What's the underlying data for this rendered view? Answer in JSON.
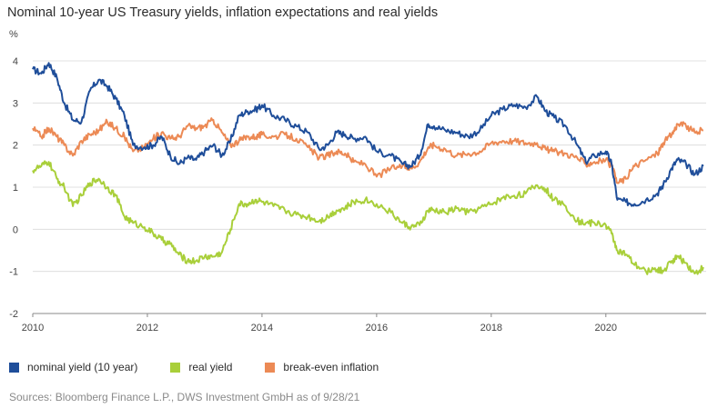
{
  "title": "Nominal 10-year US Treasury yields, inflation expectations and real yields",
  "unit_label": "%",
  "source": "Sources: Bloomberg Finance L.P., DWS Investment GmbH as of 9/28/21",
  "colors": {
    "nominal": "#1f4e9a",
    "real": "#a9cf3a",
    "breakeven": "#ec8a55",
    "grid": "#d9d9d9",
    "axis": "#888888"
  },
  "chart_data": {
    "type": "line",
    "title": "Nominal 10-year US Treasury yields, inflation expectations and real yields",
    "xlabel": "",
    "ylabel": "%",
    "xlim": [
      2010.0,
      2021.75
    ],
    "ylim": [
      -2,
      4
    ],
    "x_ticks": [
      2010,
      2012,
      2014,
      2016,
      2018,
      2020
    ],
    "y_ticks": [
      -2,
      -1,
      0,
      1,
      2,
      3,
      4
    ],
    "grid": "horizontal",
    "legend_position": "bottom",
    "series": [
      {
        "name": "nominal yield (10 year)",
        "color": "#1f4e9a",
        "points": [
          [
            2010.0,
            3.8
          ],
          [
            2010.15,
            3.7
          ],
          [
            2010.28,
            3.95
          ],
          [
            2010.42,
            3.6
          ],
          [
            2010.55,
            3.0
          ],
          [
            2010.7,
            2.6
          ],
          [
            2010.85,
            2.55
          ],
          [
            2011.0,
            3.3
          ],
          [
            2011.15,
            3.55
          ],
          [
            2011.3,
            3.4
          ],
          [
            2011.45,
            3.1
          ],
          [
            2011.6,
            2.7
          ],
          [
            2011.75,
            2.0
          ],
          [
            2011.95,
            1.95
          ],
          [
            2012.1,
            2.0
          ],
          [
            2012.25,
            2.2
          ],
          [
            2012.4,
            1.75
          ],
          [
            2012.55,
            1.55
          ],
          [
            2012.7,
            1.7
          ],
          [
            2012.85,
            1.65
          ],
          [
            2013.0,
            1.85
          ],
          [
            2013.15,
            2.0
          ],
          [
            2013.3,
            1.75
          ],
          [
            2013.45,
            2.1
          ],
          [
            2013.6,
            2.7
          ],
          [
            2013.75,
            2.8
          ],
          [
            2013.9,
            2.85
          ],
          [
            2014.0,
            2.95
          ],
          [
            2014.2,
            2.7
          ],
          [
            2014.4,
            2.6
          ],
          [
            2014.6,
            2.45
          ],
          [
            2014.8,
            2.3
          ],
          [
            2015.0,
            1.9
          ],
          [
            2015.15,
            2.0
          ],
          [
            2015.3,
            2.3
          ],
          [
            2015.45,
            2.25
          ],
          [
            2015.6,
            2.15
          ],
          [
            2015.8,
            2.2
          ],
          [
            2016.0,
            1.85
          ],
          [
            2016.25,
            1.75
          ],
          [
            2016.45,
            1.55
          ],
          [
            2016.6,
            1.5
          ],
          [
            2016.75,
            1.75
          ],
          [
            2016.9,
            2.5
          ],
          [
            2017.0,
            2.45
          ],
          [
            2017.2,
            2.35
          ],
          [
            2017.4,
            2.3
          ],
          [
            2017.6,
            2.2
          ],
          [
            2017.8,
            2.35
          ],
          [
            2018.0,
            2.7
          ],
          [
            2018.2,
            2.85
          ],
          [
            2018.4,
            2.95
          ],
          [
            2018.6,
            2.9
          ],
          [
            2018.8,
            3.15
          ],
          [
            2018.95,
            2.8
          ],
          [
            2019.1,
            2.65
          ],
          [
            2019.3,
            2.45
          ],
          [
            2019.5,
            2.0
          ],
          [
            2019.65,
            1.6
          ],
          [
            2019.8,
            1.75
          ],
          [
            2020.0,
            1.85
          ],
          [
            2020.1,
            1.55
          ],
          [
            2020.2,
            0.7
          ],
          [
            2020.35,
            0.65
          ],
          [
            2020.5,
            0.6
          ],
          [
            2020.7,
            0.7
          ],
          [
            2020.9,
            0.85
          ],
          [
            2021.0,
            1.05
          ],
          [
            2021.15,
            1.45
          ],
          [
            2021.25,
            1.65
          ],
          [
            2021.4,
            1.55
          ],
          [
            2021.55,
            1.3
          ],
          [
            2021.7,
            1.5
          ]
        ]
      },
      {
        "name": "real yield",
        "color": "#a9cf3a",
        "points": [
          [
            2010.0,
            1.4
          ],
          [
            2010.15,
            1.5
          ],
          [
            2010.28,
            1.6
          ],
          [
            2010.42,
            1.2
          ],
          [
            2010.55,
            1.0
          ],
          [
            2010.7,
            0.55
          ],
          [
            2010.85,
            0.8
          ],
          [
            2011.0,
            1.1
          ],
          [
            2011.15,
            1.2
          ],
          [
            2011.3,
            1.0
          ],
          [
            2011.45,
            0.8
          ],
          [
            2011.6,
            0.3
          ],
          [
            2011.75,
            0.15
          ],
          [
            2011.95,
            0.05
          ],
          [
            2012.1,
            -0.1
          ],
          [
            2012.25,
            -0.25
          ],
          [
            2012.4,
            -0.35
          ],
          [
            2012.55,
            -0.6
          ],
          [
            2012.7,
            -0.75
          ],
          [
            2012.85,
            -0.75
          ],
          [
            2013.0,
            -0.65
          ],
          [
            2013.15,
            -0.65
          ],
          [
            2013.3,
            -0.55
          ],
          [
            2013.45,
            0.0
          ],
          [
            2013.6,
            0.6
          ],
          [
            2013.75,
            0.6
          ],
          [
            2013.9,
            0.7
          ],
          [
            2014.0,
            0.65
          ],
          [
            2014.2,
            0.55
          ],
          [
            2014.4,
            0.45
          ],
          [
            2014.6,
            0.35
          ],
          [
            2014.8,
            0.3
          ],
          [
            2015.0,
            0.2
          ],
          [
            2015.15,
            0.3
          ],
          [
            2015.3,
            0.45
          ],
          [
            2015.45,
            0.5
          ],
          [
            2015.6,
            0.65
          ],
          [
            2015.8,
            0.7
          ],
          [
            2016.0,
            0.6
          ],
          [
            2016.25,
            0.4
          ],
          [
            2016.45,
            0.15
          ],
          [
            2016.6,
            0.05
          ],
          [
            2016.75,
            0.1
          ],
          [
            2016.9,
            0.45
          ],
          [
            2017.0,
            0.45
          ],
          [
            2017.2,
            0.4
          ],
          [
            2017.4,
            0.5
          ],
          [
            2017.6,
            0.4
          ],
          [
            2017.8,
            0.5
          ],
          [
            2018.0,
            0.6
          ],
          [
            2018.2,
            0.75
          ],
          [
            2018.4,
            0.8
          ],
          [
            2018.6,
            0.85
          ],
          [
            2018.8,
            1.05
          ],
          [
            2018.95,
            0.95
          ],
          [
            2019.1,
            0.7
          ],
          [
            2019.3,
            0.55
          ],
          [
            2019.5,
            0.2
          ],
          [
            2019.65,
            0.15
          ],
          [
            2019.8,
            0.15
          ],
          [
            2020.0,
            0.1
          ],
          [
            2020.1,
            -0.1
          ],
          [
            2020.2,
            -0.5
          ],
          [
            2020.35,
            -0.6
          ],
          [
            2020.5,
            -0.85
          ],
          [
            2020.7,
            -1.0
          ],
          [
            2020.9,
            -0.95
          ],
          [
            2021.0,
            -1.0
          ],
          [
            2021.15,
            -0.75
          ],
          [
            2021.25,
            -0.65
          ],
          [
            2021.4,
            -0.8
          ],
          [
            2021.55,
            -1.05
          ],
          [
            2021.7,
            -0.9
          ]
        ]
      },
      {
        "name": "break-even inflation",
        "color": "#ec8a55",
        "points": [
          [
            2010.0,
            2.4
          ],
          [
            2010.15,
            2.2
          ],
          [
            2010.28,
            2.4
          ],
          [
            2010.42,
            2.2
          ],
          [
            2010.55,
            2.0
          ],
          [
            2010.7,
            1.75
          ],
          [
            2010.85,
            2.1
          ],
          [
            2011.0,
            2.25
          ],
          [
            2011.15,
            2.35
          ],
          [
            2011.3,
            2.55
          ],
          [
            2011.45,
            2.4
          ],
          [
            2011.6,
            2.2
          ],
          [
            2011.75,
            1.85
          ],
          [
            2011.95,
            1.95
          ],
          [
            2012.1,
            2.15
          ],
          [
            2012.25,
            2.3
          ],
          [
            2012.4,
            2.15
          ],
          [
            2012.55,
            2.2
          ],
          [
            2012.7,
            2.45
          ],
          [
            2012.85,
            2.4
          ],
          [
            2013.0,
            2.45
          ],
          [
            2013.15,
            2.6
          ],
          [
            2013.3,
            2.3
          ],
          [
            2013.45,
            2.0
          ],
          [
            2013.6,
            2.1
          ],
          [
            2013.75,
            2.2
          ],
          [
            2013.9,
            2.2
          ],
          [
            2014.0,
            2.25
          ],
          [
            2014.2,
            2.2
          ],
          [
            2014.4,
            2.25
          ],
          [
            2014.6,
            2.15
          ],
          [
            2014.8,
            1.95
          ],
          [
            2015.0,
            1.7
          ],
          [
            2015.15,
            1.75
          ],
          [
            2015.3,
            1.85
          ],
          [
            2015.45,
            1.8
          ],
          [
            2015.6,
            1.6
          ],
          [
            2015.8,
            1.55
          ],
          [
            2016.0,
            1.25
          ],
          [
            2016.25,
            1.45
          ],
          [
            2016.45,
            1.5
          ],
          [
            2016.6,
            1.45
          ],
          [
            2016.75,
            1.6
          ],
          [
            2016.9,
            1.95
          ],
          [
            2017.0,
            2.0
          ],
          [
            2017.2,
            1.9
          ],
          [
            2017.4,
            1.75
          ],
          [
            2017.6,
            1.8
          ],
          [
            2017.8,
            1.85
          ],
          [
            2018.0,
            2.05
          ],
          [
            2018.2,
            2.1
          ],
          [
            2018.4,
            2.1
          ],
          [
            2018.6,
            2.05
          ],
          [
            2018.8,
            2.05
          ],
          [
            2018.95,
            1.9
          ],
          [
            2019.1,
            1.85
          ],
          [
            2019.3,
            1.8
          ],
          [
            2019.5,
            1.7
          ],
          [
            2019.65,
            1.55
          ],
          [
            2019.8,
            1.6
          ],
          [
            2020.0,
            1.65
          ],
          [
            2020.1,
            1.5
          ],
          [
            2020.2,
            1.1
          ],
          [
            2020.35,
            1.2
          ],
          [
            2020.5,
            1.5
          ],
          [
            2020.7,
            1.65
          ],
          [
            2020.9,
            1.8
          ],
          [
            2021.0,
            2.05
          ],
          [
            2021.15,
            2.25
          ],
          [
            2021.25,
            2.5
          ],
          [
            2021.4,
            2.45
          ],
          [
            2021.55,
            2.3
          ],
          [
            2021.7,
            2.35
          ]
        ]
      }
    ]
  }
}
